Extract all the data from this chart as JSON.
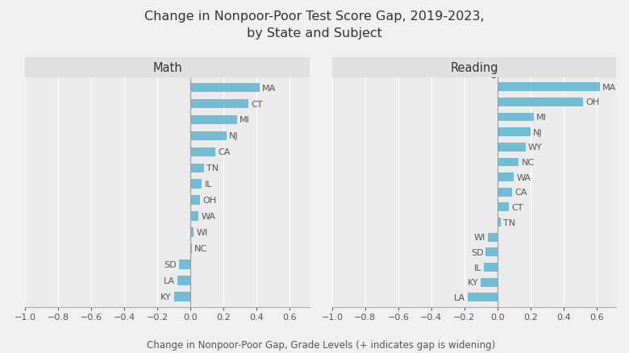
{
  "title": "Change in Nonpoor-Poor Test Score Gap, 2019-2023,\nby State and Subject",
  "xlabel": "Change in Nonpoor-Poor Gap, Grade Levels (+ indicates gap is widening)",
  "math": {
    "states": [
      "MA",
      "CT",
      "MI",
      "NJ",
      "CA",
      "TN",
      "IL",
      "OH",
      "WA",
      "WI",
      "NC",
      "SD",
      "LA",
      "KY"
    ],
    "values": [
      0.42,
      0.35,
      0.28,
      0.22,
      0.15,
      0.08,
      0.07,
      0.06,
      0.05,
      0.02,
      0.01,
      -0.07,
      -0.08,
      -0.1
    ]
  },
  "reading": {
    "states": [
      "MA",
      "OH",
      "MI",
      "NJ",
      "WY",
      "NC",
      "WA",
      "CA",
      "CT",
      "TN",
      "WI",
      "SD",
      "IL",
      "KY",
      "LA"
    ],
    "values": [
      0.62,
      0.52,
      0.22,
      0.2,
      0.17,
      0.13,
      0.1,
      0.09,
      0.07,
      0.02,
      -0.06,
      -0.07,
      -0.08,
      -0.1,
      -0.18
    ]
  },
  "bar_color": "#72bcd4",
  "xlim": [
    -1.0,
    0.72
  ],
  "xticks": [
    -1.0,
    -0.8,
    -0.6,
    -0.4,
    -0.2,
    0.0,
    0.2,
    0.4,
    0.6
  ],
  "outer_bg": "#f0f0f0",
  "panel_bg": "#ebebeb",
  "panel_title_bg": "#e0e0e0",
  "grid_color": "#ffffff",
  "title_fontsize": 11.5,
  "label_fontsize": 8.5,
  "tick_fontsize": 8,
  "state_label_fontsize": 8,
  "panel_title_fontsize": 10.5
}
